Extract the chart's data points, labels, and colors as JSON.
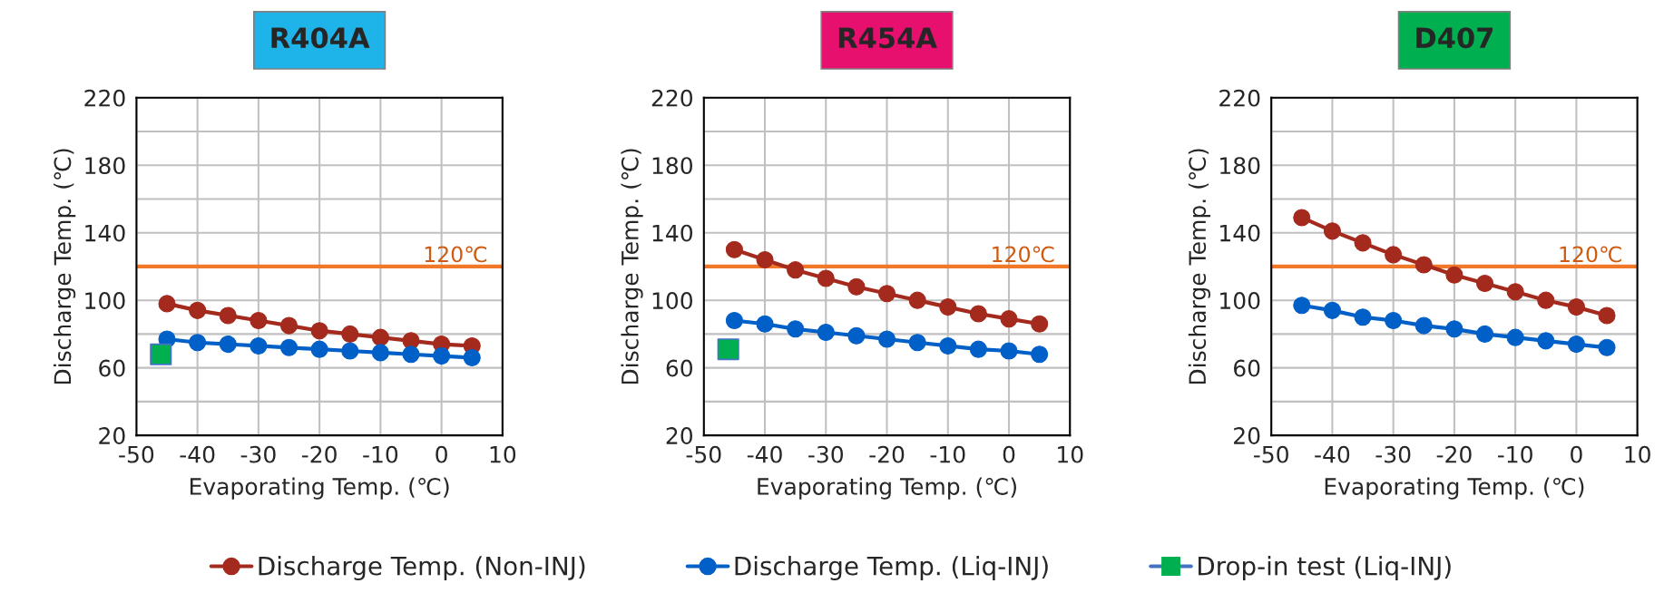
{
  "chart_data": [
    {
      "type": "line",
      "title": "R404A",
      "xlabel": "Evaporating Temp. (℃)",
      "ylabel": "Discharge Temp. (℃)",
      "x": [
        -45,
        -40,
        -35,
        -30,
        -25,
        -20,
        -15,
        -10,
        -5,
        0,
        5
      ],
      "series": [
        {
          "name": "Discharge Temp. (Non-INJ)",
          "color": "#a52a1e",
          "marker": "circle",
          "values": [
            98,
            94,
            91,
            88,
            85,
            82,
            80,
            78,
            76,
            74,
            73
          ]
        },
        {
          "name": "Discharge Temp. (Liq-INJ)",
          "color": "#0060c8",
          "marker": "circle",
          "values": [
            77,
            75,
            74,
            73,
            72,
            71,
            70,
            69,
            68,
            67,
            66
          ]
        },
        {
          "name": "Drop-in test (Liq-INJ)",
          "type": "scatter",
          "color": "#00b050",
          "marker": "square",
          "x": [
            -46
          ],
          "values": [
            68
          ]
        }
      ],
      "ref_lines": [
        {
          "axis": "y",
          "value": 120,
          "label": "120℃",
          "color": "#f07828"
        }
      ],
      "xlim": [
        -50,
        10
      ],
      "xticks": [
        -50,
        -40,
        -30,
        -20,
        -10,
        0,
        10
      ],
      "ylim": [
        20,
        220
      ],
      "yticks": [
        20,
        {
          "value": 40,
          "label": null
        },
        60,
        {
          "value": 80,
          "label": null
        },
        100,
        {
          "value": 120,
          "label": null
        },
        140,
        {
          "value": 160,
          "label": null
        },
        180,
        {
          "value": 200,
          "label": null
        },
        220
      ],
      "grid": true,
      "legend": "bottom"
    },
    {
      "type": "line",
      "title": "R454A",
      "xlabel": "Evaporating Temp. (℃)",
      "ylabel": "Discharge Temp. (℃)",
      "x": [
        -45,
        -40,
        -35,
        -30,
        -25,
        -20,
        -15,
        -10,
        -5,
        0,
        5
      ],
      "series": [
        {
          "color": "#a52a1e",
          "marker": "circle",
          "values": [
            130,
            124,
            118,
            113,
            108,
            104,
            100,
            96,
            92,
            89,
            86
          ]
        },
        {
          "color": "#0060c8",
          "marker": "circle",
          "values": [
            88,
            86,
            83,
            81,
            79,
            77,
            75,
            73,
            71,
            70,
            68
          ]
        },
        {
          "type": "scatter",
          "color": "#00b050",
          "marker": "square",
          "x": [
            -46
          ],
          "values": [
            71
          ]
        }
      ],
      "ref_lines": [
        {
          "axis": "y",
          "value": 120,
          "label": "120℃",
          "color": "#f07828"
        }
      ],
      "xlim": [
        -50,
        10
      ],
      "xticks": [
        -50,
        -40,
        -30,
        -20,
        -10,
        0,
        10
      ],
      "ylim": [
        20,
        220
      ],
      "yticks": [
        20,
        {
          "value": 40,
          "label": null
        },
        60,
        {
          "value": 80,
          "label": null
        },
        100,
        {
          "value": 120,
          "label": null
        },
        140,
        {
          "value": 160,
          "label": null
        },
        180,
        {
          "value": 200,
          "label": null
        },
        220
      ],
      "grid": true
    },
    {
      "type": "line",
      "title": "D407",
      "xlabel": "Evaporating Temp. (℃)",
      "ylabel": "Discharge Temp. (℃)",
      "x": [
        -45,
        -40,
        -35,
        -30,
        -25,
        -20,
        -15,
        -10,
        -5,
        0,
        5
      ],
      "series": [
        {
          "color": "#a52a1e",
          "marker": "circle",
          "values": [
            149,
            141,
            134,
            127,
            121,
            115,
            110,
            105,
            100,
            96,
            91
          ]
        },
        {
          "color": "#0060c8",
          "marker": "circle",
          "values": [
            97,
            94,
            90,
            88,
            85,
            83,
            80,
            78,
            76,
            74,
            72
          ]
        }
      ],
      "ref_lines": [
        {
          "axis": "y",
          "value": 120,
          "label": "120℃",
          "color": "#f07828"
        }
      ],
      "xlim": [
        -50,
        10
      ],
      "xticks": [
        -50,
        -40,
        -30,
        -20,
        -10,
        0,
        10
      ],
      "ylim": [
        20,
        220
      ],
      "yticks": [
        20,
        {
          "value": 40,
          "label": null
        },
        60,
        {
          "value": 80,
          "label": null
        },
        100,
        {
          "value": 120,
          "label": null
        },
        140,
        {
          "value": 160,
          "label": null
        },
        180,
        {
          "value": 200,
          "label": null
        },
        220
      ],
      "grid": true
    }
  ]
}
